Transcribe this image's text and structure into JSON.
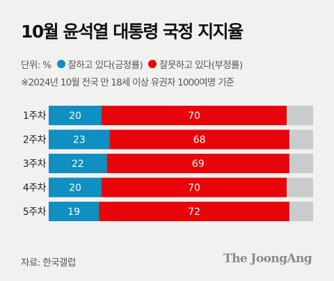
{
  "title": "10월 윤석열 대통령 국정 지지율",
  "legend": {
    "unit_label": "단위: %",
    "items": [
      {
        "label": "잘하고 있다(긍정률)",
        "color": "#0f8fc2"
      },
      {
        "label": "잘못하고 있다(부정률)",
        "color": "#e8060a"
      }
    ]
  },
  "note": "※2024년 10월 전국 만 18세 이상 유권자 1000여명 기준",
  "source": "자료: 한국갤럽",
  "brand": "The JoongAng",
  "chart_data": {
    "type": "bar",
    "orientation": "horizontal",
    "stacked": true,
    "categories": [
      "1주차",
      "2주차",
      "3주차",
      "4주차",
      "5주차"
    ],
    "series": [
      {
        "name": "잘하고 있다(긍정률)",
        "values": [
          20,
          23,
          22,
          20,
          19
        ],
        "color": "#0f8fc2"
      },
      {
        "name": "잘못하고 있다(부정률)",
        "values": [
          70,
          68,
          69,
          70,
          72
        ],
        "color": "#e8060a"
      }
    ],
    "remainder_color": "#c9cccd",
    "xlim": [
      0,
      100
    ]
  }
}
